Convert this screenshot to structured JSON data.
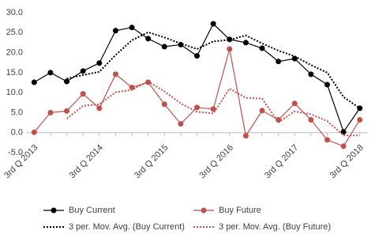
{
  "chart_data": {
    "type": "line",
    "categories": [
      "3rd Q 2013",
      null,
      null,
      null,
      "3rd Q 2014",
      null,
      null,
      null,
      "3rd Q 2015",
      null,
      null,
      null,
      "3rd Q 2016",
      null,
      null,
      null,
      "3rd Q 2017",
      null,
      null,
      null,
      "3rd Q 2018"
    ],
    "series": [
      {
        "name": "Buy Current",
        "color": "#000000",
        "style": "solid",
        "marker": "circle",
        "values": [
          12.6,
          15.0,
          12.8,
          15.4,
          17.4,
          25.5,
          26.3,
          23.5,
          21.5,
          22.0,
          19.2,
          27.2,
          23.3,
          22.5,
          21.1,
          17.8,
          18.5,
          14.6,
          12.0,
          0.2,
          6.1
        ]
      },
      {
        "name": "Buy Future",
        "color": "#c0504d",
        "style": "solid",
        "marker": "circle",
        "values": [
          0.1,
          5.0,
          5.4,
          9.7,
          6.1,
          14.6,
          11.3,
          12.6,
          7.1,
          2.2,
          6.3,
          5.9,
          20.9,
          -0.8,
          5.5,
          3.2,
          7.3,
          3.2,
          -1.8,
          -3.4,
          3.2
        ]
      },
      {
        "name": "3 per. Mov. Avg. (Buy Current)",
        "color": "#000000",
        "style": "dotted",
        "values": [
          null,
          null,
          13.5,
          14.4,
          15.2,
          19.4,
          23.1,
          25.1,
          23.8,
          22.3,
          20.9,
          22.8,
          23.2,
          24.3,
          22.3,
          20.5,
          19.1,
          16.9,
          15.0,
          8.9,
          6.1
        ]
      },
      {
        "name": "3 per. Mov. Avg. (Buy Future)",
        "color": "#c0504d",
        "style": "dotted",
        "values": [
          null,
          null,
          3.5,
          6.7,
          7.1,
          10.1,
          10.7,
          12.8,
          10.3,
          7.3,
          5.2,
          4.8,
          11.0,
          8.7,
          8.5,
          2.6,
          5.3,
          4.6,
          2.9,
          -0.7,
          -0.7
        ]
      }
    ],
    "ylim": [
      -5,
      30
    ],
    "yticks": [
      {
        "value": -5,
        "label": "-5.0"
      },
      {
        "value": 0,
        "label": "0.0"
      },
      {
        "value": 5,
        "label": "5.0"
      },
      {
        "value": 10,
        "label": "10.0"
      },
      {
        "value": 15,
        "label": "15.0"
      },
      {
        "value": 20,
        "label": "20.0"
      },
      {
        "value": 25,
        "label": "25.0"
      },
      {
        "value": 30,
        "label": "30.0"
      }
    ],
    "grid": false,
    "legend": "bottom"
  }
}
